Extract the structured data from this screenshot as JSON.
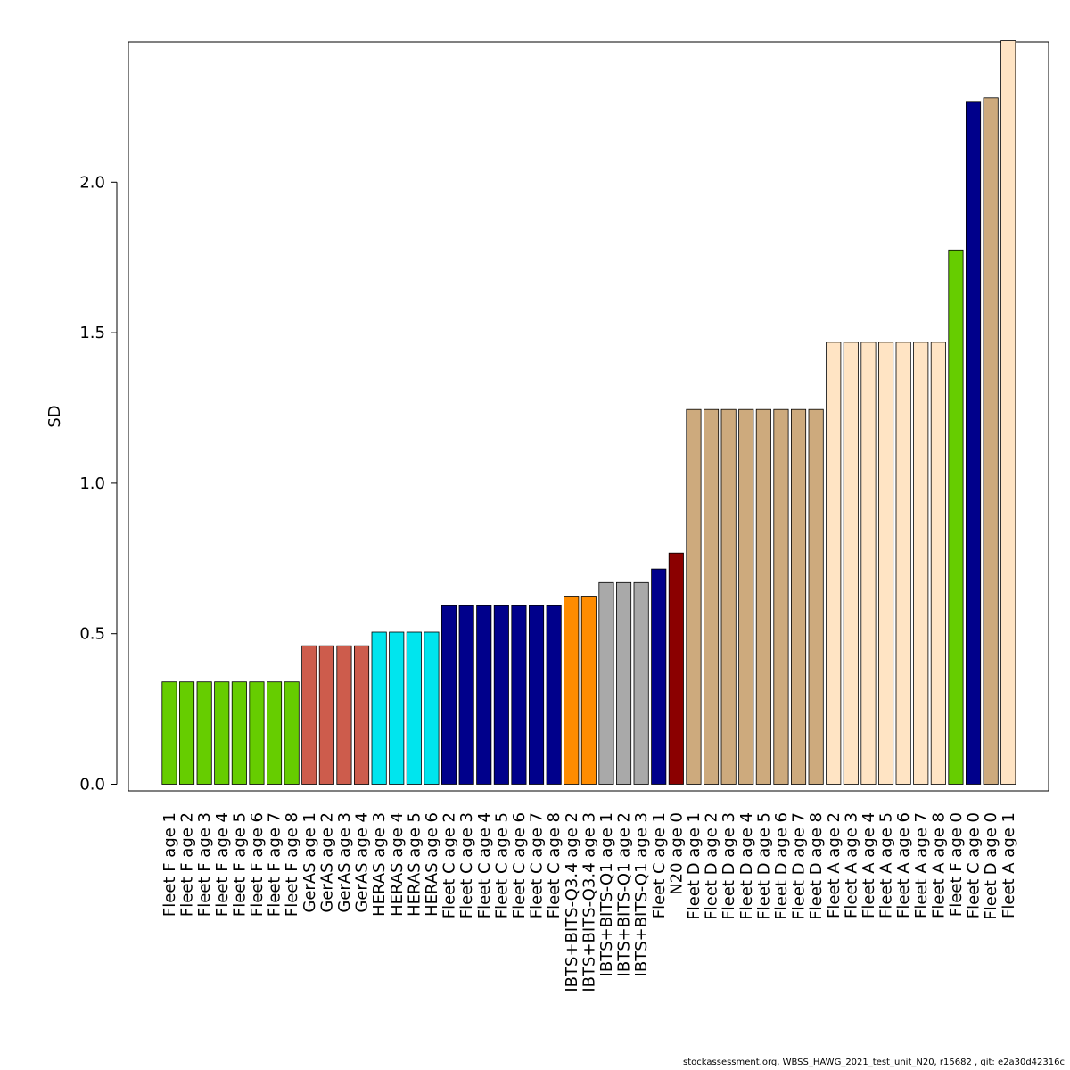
{
  "chart_data": {
    "type": "bar",
    "ylabel": "SD",
    "xlabel": "",
    "ylim": [
      0,
      2.45
    ],
    "yticks": [
      "0.0",
      "0.5",
      "1.0",
      "1.5",
      "2.0"
    ],
    "grid": false,
    "categories": [
      "Fleet F age 1",
      "Fleet F age 2",
      "Fleet F age 3",
      "Fleet F age 4",
      "Fleet F age 5",
      "Fleet F age 6",
      "Fleet F age 7",
      "Fleet F age 8",
      "GerAS age 1",
      "GerAS age 2",
      "GerAS age 3",
      "GerAS age 4",
      "HERAS age 3",
      "HERAS age 4",
      "HERAS age 5",
      "HERAS age 6",
      "Fleet C age 2",
      "Fleet C age 3",
      "Fleet C age 4",
      "Fleet C age 5",
      "Fleet C age 6",
      "Fleet C age 7",
      "Fleet C age 8",
      "IBTS+BITS-Q3.4 age 2",
      "IBTS+BITS-Q3.4 age 3",
      "IBTS+BITS-Q1 age 1",
      "IBTS+BITS-Q1 age 2",
      "IBTS+BITS-Q1 age 3",
      "Fleet C age 1",
      "N20 age 0",
      "Fleet D age 1",
      "Fleet D age 2",
      "Fleet D age 3",
      "Fleet D age 4",
      "Fleet D age 5",
      "Fleet D age 6",
      "Fleet D age 7",
      "Fleet D age 8",
      "Fleet A age 2",
      "Fleet A age 3",
      "Fleet A age 4",
      "Fleet A age 5",
      "Fleet A age 6",
      "Fleet A age 7",
      "Fleet A age 8",
      "Fleet F age 0",
      "Fleet C age 0",
      "Fleet D age 0",
      "Fleet A age 1"
    ],
    "values": [
      0.34,
      0.34,
      0.34,
      0.34,
      0.34,
      0.34,
      0.34,
      0.34,
      0.46,
      0.46,
      0.46,
      0.46,
      0.505,
      0.505,
      0.505,
      0.505,
      0.593,
      0.593,
      0.593,
      0.593,
      0.593,
      0.593,
      0.593,
      0.625,
      0.625,
      0.67,
      0.67,
      0.67,
      0.715,
      0.768,
      1.245,
      1.245,
      1.245,
      1.245,
      1.245,
      1.245,
      1.245,
      1.245,
      1.468,
      1.468,
      1.468,
      1.468,
      1.468,
      1.468,
      1.468,
      1.775,
      2.268,
      2.28,
      2.47
    ],
    "colors": [
      "#66cd00",
      "#66cd00",
      "#66cd00",
      "#66cd00",
      "#66cd00",
      "#66cd00",
      "#66cd00",
      "#66cd00",
      "#cd5c4c",
      "#cd5c4c",
      "#cd5c4c",
      "#cd5c4c",
      "#00e5ee",
      "#00e5ee",
      "#00e5ee",
      "#00e5ee",
      "#00008b",
      "#00008b",
      "#00008b",
      "#00008b",
      "#00008b",
      "#00008b",
      "#00008b",
      "#ff8c00",
      "#ff8c00",
      "#a9a9a9",
      "#a9a9a9",
      "#a9a9a9",
      "#00008b",
      "#8b0000",
      "#cdaa7d",
      "#cdaa7d",
      "#cdaa7d",
      "#cdaa7d",
      "#cdaa7d",
      "#cdaa7d",
      "#cdaa7d",
      "#cdaa7d",
      "#ffe4c4",
      "#ffe4c4",
      "#ffe4c4",
      "#ffe4c4",
      "#ffe4c4",
      "#ffe4c4",
      "#ffe4c4",
      "#66cd00",
      "#00008b",
      "#cdaa7d",
      "#ffe4c4"
    ]
  },
  "footer": "stockassessment.org, WBSS_HAWG_2021_test_unit_N20, r15682 , git: e2a30d42316c"
}
